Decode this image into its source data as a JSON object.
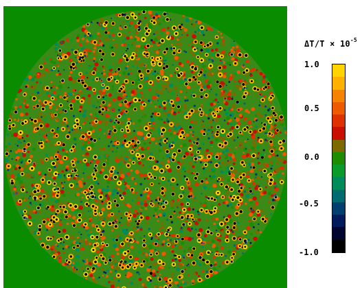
{
  "colorbar": {
    "title_base": "ΔT/T × 10",
    "title_exp": "-5",
    "ticks": [
      "1.0",
      "0.5",
      "0.0",
      "-0.5",
      "-1.0"
    ],
    "colors_top_to_bottom": [
      "#ffd400",
      "#ffb000",
      "#f58200",
      "#ee5a00",
      "#dd3200",
      "#c80f00",
      "#7c6a00",
      "#1e8c00",
      "#0a9b2a",
      "#008c5a",
      "#006b6e",
      "#003f6e",
      "#001a5c",
      "#000530",
      "#000000"
    ]
  },
  "map": {
    "background_color": "#0a8c00",
    "disk_color": "#3a8a17"
  }
}
